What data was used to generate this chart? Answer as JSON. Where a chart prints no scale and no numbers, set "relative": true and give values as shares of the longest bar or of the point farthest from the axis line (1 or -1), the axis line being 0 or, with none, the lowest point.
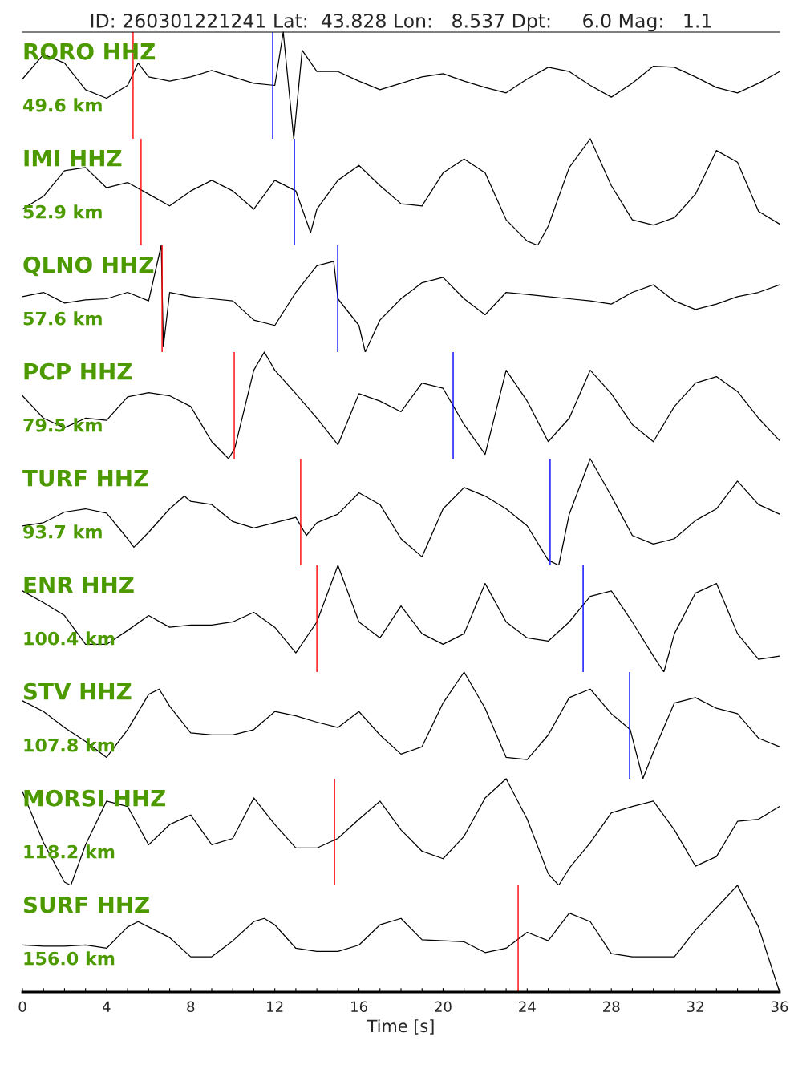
{
  "chart_data": [
    {
      "type": "line",
      "relative": true,
      "title": "ID: 260301221241 Lat:  43.828 Lon:   8.537 Dpt:     6.0 Mag:   1.1",
      "annotations": [
        "RORO HHZ",
        "49.6 km"
      ],
      "xlim": [
        0,
        36
      ],
      "tick_labels": false,
      "grid": false,
      "legend": false,
      "series": [
        {
          "color": "#000000",
          "x": [
            0,
            1,
            2,
            3,
            4,
            5,
            5.5,
            6,
            7,
            8,
            9,
            10,
            11,
            12,
            12.4,
            12.9,
            13.3,
            14,
            15,
            16,
            17,
            18,
            19,
            20,
            21,
            22,
            23,
            24,
            25,
            26,
            27,
            28,
            29,
            30,
            31,
            32,
            33,
            34,
            35,
            36
          ],
          "values": [
            0.56,
            0.79,
            0.71,
            0.46,
            0.38,
            0.5,
            0.71,
            0.58,
            0.54,
            0.58,
            0.64,
            0.58,
            0.52,
            0.5,
            1.0,
            0,
            0.83,
            0.63,
            0.63,
            0.54,
            0.46,
            0.52,
            0.58,
            0.61,
            0.54,
            0.48,
            0.43,
            0.56,
            0.67,
            0.63,
            0.5,
            0.39,
            0.52,
            0.68,
            0.67,
            0.58,
            0.48,
            0.43,
            0.52,
            0.63
          ]
        }
      ],
      "ref_lines": [
        {
          "axis": "x",
          "value": 5.26,
          "color": "#ff0000"
        },
        {
          "axis": "x",
          "value": 11.9,
          "color": "#0000ff"
        }
      ]
    },
    {
      "type": "line",
      "relative": true,
      "annotations": [
        "IMI HHZ",
        "52.9 km"
      ],
      "xlim": [
        0,
        36
      ],
      "tick_labels": false,
      "grid": false,
      "legend": false,
      "series": [
        {
          "color": "#000000",
          "x": [
            0,
            1,
            2,
            3,
            4,
            5,
            6,
            7,
            8,
            9,
            10,
            11,
            12,
            13,
            13.7,
            14,
            15,
            16,
            17,
            18,
            19,
            20,
            21,
            22,
            23,
            24,
            24.5,
            25,
            26,
            27,
            28,
            29,
            30,
            31,
            32,
            33,
            34,
            35,
            36
          ],
          "values": [
            0.34,
            0.46,
            0.7,
            0.73,
            0.54,
            0.59,
            0.48,
            0.37,
            0.51,
            0.61,
            0.51,
            0.34,
            0.61,
            0.51,
            0.12,
            0.34,
            0.61,
            0.75,
            0.56,
            0.39,
            0.37,
            0.68,
            0.81,
            0.68,
            0.24,
            0.04,
            0,
            0.18,
            0.73,
            1.0,
            0.56,
            0.24,
            0.19,
            0.26,
            0.48,
            0.89,
            0.78,
            0.32,
            0.2
          ]
        }
      ],
      "ref_lines": [
        {
          "axis": "x",
          "value": 5.64,
          "color": "#ff0000"
        },
        {
          "axis": "x",
          "value": 12.93,
          "color": "#0000ff"
        }
      ]
    },
    {
      "type": "line",
      "relative": true,
      "annotations": [
        "QLNO HHZ",
        "57.6 km"
      ],
      "xlim": [
        0,
        36
      ],
      "tick_labels": false,
      "grid": false,
      "legend": false,
      "series": [
        {
          "color": "#000000",
          "x": [
            0,
            1,
            2,
            3,
            4,
            5,
            6,
            6.6,
            6.7,
            7,
            8,
            9,
            10,
            11,
            12,
            13,
            14,
            14.8,
            15,
            16,
            16.3,
            17,
            18,
            19,
            20,
            21,
            22,
            23,
            24,
            25,
            26,
            27,
            28,
            29,
            30,
            31,
            32,
            33,
            34,
            35,
            36
          ],
          "values": [
            0.52,
            0.56,
            0.46,
            0.49,
            0.5,
            0.56,
            0.48,
            1.0,
            0.05,
            0.56,
            0.52,
            0.5,
            0.48,
            0.3,
            0.25,
            0.56,
            0.81,
            0.85,
            0.5,
            0.25,
            0,
            0.3,
            0.5,
            0.65,
            0.7,
            0.5,
            0.35,
            0.56,
            0.54,
            0.52,
            0.5,
            0.48,
            0.45,
            0.56,
            0.63,
            0.48,
            0.4,
            0.45,
            0.52,
            0.56,
            0.63
          ]
        }
      ],
      "ref_lines": [
        {
          "axis": "x",
          "value": 6.64,
          "color": "#ff0000"
        },
        {
          "axis": "x",
          "value": 14.99,
          "color": "#0000ff"
        }
      ]
    },
    {
      "type": "line",
      "relative": true,
      "annotations": [
        "PCP HHZ",
        "79.5 km"
      ],
      "xlim": [
        0,
        36
      ],
      "tick_labels": false,
      "grid": false,
      "legend": false,
      "series": [
        {
          "color": "#000000",
          "x": [
            0,
            1,
            2,
            3,
            4,
            5,
            6,
            7,
            8,
            9,
            9.8,
            10.1,
            11,
            11.5,
            12,
            13,
            14,
            15,
            16,
            17,
            18,
            19,
            20,
            21,
            22,
            23,
            24,
            25,
            26,
            27,
            28,
            29,
            30,
            31,
            32,
            33,
            34,
            35,
            36
          ],
          "values": [
            0.59,
            0.38,
            0.29,
            0.38,
            0.36,
            0.58,
            0.62,
            0.59,
            0.49,
            0.16,
            0,
            0.1,
            0.83,
            1.0,
            0.83,
            0.61,
            0.38,
            0.13,
            0.61,
            0.54,
            0.44,
            0.71,
            0.66,
            0.32,
            0.04,
            0.83,
            0.54,
            0.16,
            0.38,
            0.83,
            0.61,
            0.32,
            0.16,
            0.49,
            0.71,
            0.77,
            0.63,
            0.38,
            0.17
          ]
        }
      ],
      "ref_lines": [
        {
          "axis": "x",
          "value": 10.07,
          "color": "#ff0000"
        },
        {
          "axis": "x",
          "value": 20.48,
          "color": "#0000ff"
        }
      ]
    },
    {
      "type": "line",
      "relative": true,
      "annotations": [
        "TURF HHZ",
        "93.7 km"
      ],
      "xlim": [
        0,
        36
      ],
      "tick_labels": false,
      "grid": false,
      "legend": false,
      "series": [
        {
          "color": "#000000",
          "x": [
            0,
            1,
            2,
            3,
            4,
            5,
            5.3,
            6,
            7,
            7.7,
            8,
            9,
            10,
            11,
            12,
            13,
            13.5,
            14,
            15,
            16,
            17,
            18,
            19,
            20,
            21,
            22,
            23,
            24,
            25,
            25.5,
            26,
            27,
            28,
            29,
            30,
            31,
            32,
            33,
            34,
            35,
            36
          ],
          "values": [
            0.37,
            0.4,
            0.5,
            0.53,
            0.49,
            0.25,
            0.17,
            0.31,
            0.53,
            0.65,
            0.6,
            0.57,
            0.41,
            0.35,
            0.4,
            0.45,
            0.28,
            0.4,
            0.48,
            0.68,
            0.57,
            0.25,
            0.08,
            0.53,
            0.73,
            0.65,
            0.53,
            0.37,
            0.05,
            0,
            0.48,
            1.0,
            0.65,
            0.28,
            0.2,
            0.25,
            0.42,
            0.53,
            0.79,
            0.57,
            0.48
          ]
        }
      ],
      "ref_lines": [
        {
          "axis": "x",
          "value": 13.23,
          "color": "#ff0000"
        },
        {
          "axis": "x",
          "value": 25.09,
          "color": "#0000ff"
        }
      ]
    },
    {
      "type": "line",
      "relative": true,
      "annotations": [
        "ENR HHZ",
        "100.4 km"
      ],
      "xlim": [
        0,
        36
      ],
      "tick_labels": false,
      "grid": false,
      "legend": false,
      "series": [
        {
          "color": "#000000",
          "x": [
            0,
            1,
            2,
            3,
            4,
            5,
            6,
            7,
            8,
            9,
            10,
            11,
            12,
            13,
            14,
            15,
            16,
            17,
            18,
            19,
            20,
            21,
            22,
            23,
            24,
            25,
            26,
            27,
            28,
            29,
            30,
            30.5,
            31,
            32,
            33,
            34,
            35,
            36
          ],
          "values": [
            0.76,
            0.65,
            0.53,
            0.26,
            0.26,
            0.39,
            0.53,
            0.42,
            0.44,
            0.44,
            0.47,
            0.56,
            0.42,
            0.18,
            0.47,
            1.0,
            0.47,
            0.32,
            0.62,
            0.36,
            0.26,
            0.36,
            0.83,
            0.47,
            0.32,
            0.29,
            0.47,
            0.71,
            0.76,
            0.47,
            0.15,
            0,
            0.36,
            0.74,
            0.83,
            0.36,
            0.12,
            0.15
          ]
        }
      ],
      "ref_lines": [
        {
          "axis": "x",
          "value": 14.0,
          "color": "#ff0000"
        },
        {
          "axis": "x",
          "value": 26.66,
          "color": "#0000ff"
        }
      ]
    },
    {
      "type": "line",
      "relative": true,
      "annotations": [
        "STV HHZ",
        "107.8 km"
      ],
      "xlim": [
        0,
        36
      ],
      "tick_labels": false,
      "grid": false,
      "legend": false,
      "series": [
        {
          "color": "#000000",
          "x": [
            0,
            1,
            2,
            3,
            4,
            5,
            6,
            6.5,
            7,
            8,
            9,
            10,
            11,
            12,
            13,
            14,
            15,
            16,
            17,
            18,
            19,
            20,
            21,
            22,
            23,
            24,
            25,
            26,
            27,
            28,
            28.9,
            29.5,
            30,
            31,
            32,
            33,
            34,
            35,
            36
          ],
          "values": [
            0.73,
            0.63,
            0.48,
            0.35,
            0.2,
            0.46,
            0.79,
            0.84,
            0.68,
            0.43,
            0.41,
            0.41,
            0.46,
            0.63,
            0.59,
            0.53,
            0.48,
            0.63,
            0.41,
            0.23,
            0.3,
            0.71,
            1.0,
            0.66,
            0.2,
            0.18,
            0.41,
            0.76,
            0.84,
            0.61,
            0.46,
            0,
            0.25,
            0.71,
            0.76,
            0.66,
            0.61,
            0.38,
            0.3
          ]
        }
      ],
      "ref_lines": [
        {
          "axis": "x",
          "value": 28.87,
          "color": "#0000ff"
        }
      ]
    },
    {
      "type": "line",
      "relative": true,
      "annotations": [
        "MORSI HHZ",
        "118.2 km"
      ],
      "xlim": [
        0,
        36
      ],
      "tick_labels": false,
      "grid": false,
      "legend": false,
      "series": [
        {
          "color": "#000000",
          "x": [
            0,
            1,
            2,
            2.3,
            3,
            4,
            5,
            6,
            7,
            8,
            9,
            10,
            11,
            12,
            13,
            14,
            15,
            16,
            17,
            18,
            19,
            20,
            21,
            22,
            23,
            24,
            25,
            25.5,
            26,
            27,
            28,
            29,
            30,
            31,
            32,
            33,
            34,
            35,
            36
          ],
          "values": [
            0.88,
            0.4,
            0.03,
            0,
            0.38,
            0.79,
            0.74,
            0.38,
            0.57,
            0.66,
            0.38,
            0.44,
            0.82,
            0.57,
            0.35,
            0.35,
            0.44,
            0.62,
            0.79,
            0.52,
            0.32,
            0.25,
            0.46,
            0.82,
            1.0,
            0.62,
            0.11,
            0,
            0.16,
            0.4,
            0.68,
            0.74,
            0.79,
            0.52,
            0.18,
            0.27,
            0.6,
            0.62,
            0.74
          ]
        }
      ],
      "ref_lines": [
        {
          "axis": "x",
          "value": 14.84,
          "color": "#ff0000"
        }
      ]
    },
    {
      "type": "line",
      "relative": true,
      "annotations": [
        "SURF HHZ",
        "156.0 km"
      ],
      "xlabel": "Time [s]",
      "xlim": [
        0,
        36
      ],
      "tick_labels": "x",
      "grid": false,
      "legend": false,
      "xticks": [
        0,
        {
          "value": 1,
          "label": null
        },
        {
          "value": 2,
          "label": null
        },
        {
          "value": 3,
          "label": null
        },
        4,
        {
          "value": 5,
          "label": null
        },
        {
          "value": 6,
          "label": null
        },
        {
          "value": 7,
          "label": null
        },
        8,
        {
          "value": 9,
          "label": null
        },
        {
          "value": 10,
          "label": null
        },
        {
          "value": 11,
          "label": null
        },
        12,
        {
          "value": 13,
          "label": null
        },
        {
          "value": 14,
          "label": null
        },
        {
          "value": 15,
          "label": null
        },
        16,
        {
          "value": 17,
          "label": null
        },
        {
          "value": 18,
          "label": null
        },
        {
          "value": 19,
          "label": null
        },
        20,
        {
          "value": 21,
          "label": null
        },
        {
          "value": 22,
          "label": null
        },
        {
          "value": 23,
          "label": null
        },
        24,
        {
          "value": 25,
          "label": null
        },
        {
          "value": 26,
          "label": null
        },
        {
          "value": 27,
          "label": null
        },
        28,
        {
          "value": 29,
          "label": null
        },
        {
          "value": 30,
          "label": null
        },
        {
          "value": 31,
          "label": null
        },
        32,
        {
          "value": 33,
          "label": null
        },
        {
          "value": 34,
          "label": null
        },
        {
          "value": 35,
          "label": null
        },
        36
      ],
      "series": [
        {
          "color": "#000000",
          "x": [
            0,
            1,
            2,
            3,
            4,
            5,
            5.5,
            6,
            7,
            8,
            9,
            10,
            11,
            11.5,
            12,
            13,
            14,
            15,
            16,
            17,
            18,
            19,
            20,
            21,
            22,
            23,
            24,
            25,
            26,
            27,
            28,
            29,
            30,
            31,
            32,
            33,
            34,
            35,
            36
          ],
          "values": [
            0.44,
            0.43,
            0.43,
            0.44,
            0.41,
            0.61,
            0.66,
            0.61,
            0.51,
            0.33,
            0.33,
            0.48,
            0.66,
            0.69,
            0.63,
            0.41,
            0.38,
            0.38,
            0.44,
            0.63,
            0.69,
            0.49,
            0.48,
            0.47,
            0.37,
            0.41,
            0.56,
            0.48,
            0.74,
            0.66,
            0.36,
            0.33,
            0.33,
            0.33,
            0.58,
            0.79,
            1.0,
            0.61,
            0
          ]
        }
      ],
      "ref_lines": [
        {
          "axis": "x",
          "value": 23.57,
          "color": "#ff0000"
        }
      ]
    }
  ]
}
